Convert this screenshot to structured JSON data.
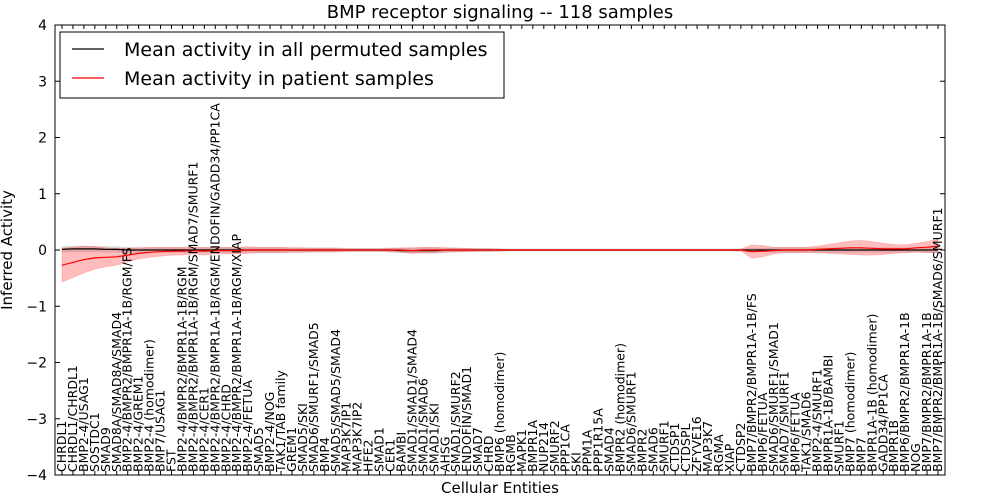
{
  "chart_data": {
    "type": "line",
    "title": "BMP receptor signaling -- 118 samples",
    "xlabel": "Cellular Entities",
    "ylabel": "Inferred Activity",
    "ylim": [
      -4,
      4
    ],
    "yticks": [
      -4,
      -3,
      -2,
      -1,
      0,
      1,
      2,
      3,
      4
    ],
    "ytick_labels": [
      "−4",
      "−3",
      "−2",
      "−1",
      "0",
      "1",
      "2",
      "3",
      "4"
    ],
    "grid": false,
    "legend_position": "top-left",
    "legend": [
      {
        "label": "Mean activity in all permuted samples",
        "color": "#000000"
      },
      {
        "label": "Mean activity in patient samples",
        "color": "#ff0000"
      }
    ],
    "entities": [
      {
        "label": "CHRDL1",
        "perm": 0.01,
        "perm_band": 0.05,
        "patient": -0.27,
        "patient_band": 0.3
      },
      {
        "label": "CHRDL1/CHRDL1",
        "perm": 0.02,
        "perm_band": 0.05,
        "patient": -0.22,
        "patient_band": 0.27
      },
      {
        "label": "BMP2-4/USAG1",
        "perm": 0.02,
        "perm_band": 0.05,
        "patient": -0.17,
        "patient_band": 0.24
      },
      {
        "label": "SOSTDC1",
        "perm": 0.02,
        "perm_band": 0.05,
        "patient": -0.14,
        "patient_band": 0.2
      },
      {
        "label": "SMAD9",
        "perm": 0.01,
        "perm_band": 0.05,
        "patient": -0.13,
        "patient_band": 0.17
      },
      {
        "label": "SMAD8A/SMAD8A/SMAD4",
        "perm": 0.01,
        "perm_band": 0.05,
        "patient": -0.12,
        "patient_band": 0.15
      },
      {
        "label": "BMP2-4/BMPR2/BMPR1A-1B/RGM/FS",
        "perm": 0.0,
        "perm_band": 0.05,
        "patient": -0.09,
        "patient_band": 0.12
      },
      {
        "label": "BMP2-4/GREM1",
        "perm": 0.0,
        "perm_band": 0.04,
        "patient": -0.06,
        "patient_band": 0.1
      },
      {
        "label": "BMP2-4 (homodimer)",
        "perm": 0.0,
        "perm_band": 0.04,
        "patient": -0.04,
        "patient_band": 0.09
      },
      {
        "label": "BMP7/USAG1",
        "perm": 0.0,
        "perm_band": 0.04,
        "patient": -0.03,
        "patient_band": 0.08
      },
      {
        "label": "FST",
        "perm": 0.0,
        "perm_band": 0.04,
        "patient": -0.02,
        "patient_band": 0.07
      },
      {
        "label": "BMP2-4/BMPR2/BMPR1A-1B/RGM",
        "perm": 0.0,
        "perm_band": 0.04,
        "patient": -0.02,
        "patient_band": 0.07
      },
      {
        "label": "BMP2-4/BMPR2/BMPR1A-1B/RGM/SMAD7/SMURF1",
        "perm": 0.0,
        "perm_band": 0.04,
        "patient": -0.01,
        "patient_band": 0.06
      },
      {
        "label": "BMP2-4/CER1",
        "perm": 0.0,
        "perm_band": 0.04,
        "patient": -0.02,
        "patient_band": 0.07
      },
      {
        "label": "BMP2-4/BMPR2/BMPR1A-1B/RGM/ENDOFIN/GADD34/PP1CA",
        "perm": 0.0,
        "perm_band": 0.04,
        "patient": -0.01,
        "patient_band": 0.06
      },
      {
        "label": "BMP2-4/CHRD",
        "perm": 0.0,
        "perm_band": 0.04,
        "patient": -0.01,
        "patient_band": 0.06
      },
      {
        "label": "BMP2-4/BMPR2/BMPR1A-1B/RGM/XIAP",
        "perm": 0.0,
        "perm_band": 0.04,
        "patient": -0.01,
        "patient_band": 0.06
      },
      {
        "label": "BMP2-4/FETUA",
        "perm": 0.0,
        "perm_band": 0.04,
        "patient": 0.0,
        "patient_band": 0.06
      },
      {
        "label": "SMAD5",
        "perm": 0.0,
        "perm_band": 0.04,
        "patient": 0.0,
        "patient_band": 0.05
      },
      {
        "label": "BMP2-4/NOG",
        "perm": 0.0,
        "perm_band": 0.04,
        "patient": 0.0,
        "patient_band": 0.05
      },
      {
        "label": "TAK1/TAB family",
        "perm": 0.0,
        "perm_band": 0.04,
        "patient": 0.0,
        "patient_band": 0.05
      },
      {
        "label": "GREM1",
        "perm": 0.0,
        "perm_band": 0.04,
        "patient": 0.0,
        "patient_band": 0.04
      },
      {
        "label": "SMAD5/SKI",
        "perm": 0.0,
        "perm_band": 0.04,
        "patient": 0.0,
        "patient_band": 0.04
      },
      {
        "label": "SMAD6/SMURF1/SMAD5",
        "perm": 0.0,
        "perm_band": 0.04,
        "patient": 0.0,
        "patient_band": 0.03
      },
      {
        "label": "BMP4",
        "perm": 0.0,
        "perm_band": 0.04,
        "patient": 0.0,
        "patient_band": 0.03
      },
      {
        "label": "SMAD5/SMAD5/SMAD4",
        "perm": 0.0,
        "perm_band": 0.04,
        "patient": 0.0,
        "patient_band": 0.03
      },
      {
        "label": "MAP3K7IP1",
        "perm": 0.0,
        "perm_band": 0.03,
        "patient": 0.0,
        "patient_band": 0.02
      },
      {
        "label": "MAP3K7IP2",
        "perm": 0.0,
        "perm_band": 0.03,
        "patient": 0.0,
        "patient_band": 0.02
      },
      {
        "label": "HFE2",
        "perm": 0.0,
        "perm_band": 0.03,
        "patient": 0.0,
        "patient_band": 0.02
      },
      {
        "label": "SMAD1",
        "perm": 0.0,
        "perm_band": 0.03,
        "patient": 0.0,
        "patient_band": 0.02
      },
      {
        "label": "CER1",
        "perm": 0.0,
        "perm_band": 0.04,
        "patient": 0.0,
        "patient_band": 0.03
      },
      {
        "label": "BAMBI",
        "perm": -0.01,
        "perm_band": 0.04,
        "patient": 0.0,
        "patient_band": 0.04
      },
      {
        "label": "SMAD1/SMAD1/SMAD4",
        "perm": -0.01,
        "perm_band": 0.05,
        "patient": -0.01,
        "patient_band": 0.05
      },
      {
        "label": "SMAD1/SMAD6",
        "perm": -0.01,
        "perm_band": 0.05,
        "patient": 0.0,
        "patient_band": 0.05
      },
      {
        "label": "SMAD1/SKI",
        "perm": -0.01,
        "perm_band": 0.05,
        "patient": 0.0,
        "patient_band": 0.05
      },
      {
        "label": "AHSG",
        "perm": 0.0,
        "perm_band": 0.04,
        "patient": 0.0,
        "patient_band": 0.04
      },
      {
        "label": "SMAD1/SMURF2",
        "perm": 0.0,
        "perm_band": 0.04,
        "patient": 0.0,
        "patient_band": 0.03
      },
      {
        "label": "ENDOFIN/SMAD1",
        "perm": 0.0,
        "perm_band": 0.03,
        "patient": 0.0,
        "patient_band": 0.03
      },
      {
        "label": "SMAD7",
        "perm": 0.0,
        "perm_band": 0.03,
        "patient": 0.0,
        "patient_band": 0.02
      },
      {
        "label": "CHRD",
        "perm": 0.0,
        "perm_band": 0.03,
        "patient": 0.0,
        "patient_band": 0.02
      },
      {
        "label": "BMP6 (homodimer)",
        "perm": 0.0,
        "perm_band": 0.02,
        "patient": 0.0,
        "patient_band": 0.02
      },
      {
        "label": "RGMB",
        "perm": 0.0,
        "perm_band": 0.02,
        "patient": 0.0,
        "patient_band": 0.01
      },
      {
        "label": "MAPK1",
        "perm": 0.0,
        "perm_band": 0.02,
        "patient": 0.0,
        "patient_band": 0.01
      },
      {
        "label": "BMPR1A",
        "perm": 0.0,
        "perm_band": 0.02,
        "patient": 0.0,
        "patient_band": 0.01
      },
      {
        "label": "NUP214",
        "perm": 0.0,
        "perm_band": 0.02,
        "patient": 0.0,
        "patient_band": 0.01
      },
      {
        "label": "SMURF2",
        "perm": 0.0,
        "perm_band": 0.02,
        "patient": 0.0,
        "patient_band": 0.01
      },
      {
        "label": "PPP1CA",
        "perm": 0.0,
        "perm_band": 0.02,
        "patient": 0.0,
        "patient_band": 0.01
      },
      {
        "label": "SKI",
        "perm": 0.0,
        "perm_band": 0.02,
        "patient": 0.0,
        "patient_band": 0.01
      },
      {
        "label": "PPM1A",
        "perm": 0.0,
        "perm_band": 0.02,
        "patient": 0.0,
        "patient_band": 0.01
      },
      {
        "label": "PPP1R15A",
        "perm": 0.0,
        "perm_band": 0.02,
        "patient": 0.0,
        "patient_band": 0.01
      },
      {
        "label": "SMAD4",
        "perm": 0.0,
        "perm_band": 0.02,
        "patient": 0.0,
        "patient_band": 0.01
      },
      {
        "label": "BMPR2 (homodimer)",
        "perm": 0.0,
        "perm_band": 0.02,
        "patient": 0.0,
        "patient_band": 0.01
      },
      {
        "label": "SMAD6/SMURF1",
        "perm": 0.0,
        "perm_band": 0.02,
        "patient": 0.0,
        "patient_band": 0.01
      },
      {
        "label": "BMPR2",
        "perm": 0.0,
        "perm_band": 0.02,
        "patient": 0.0,
        "patient_band": 0.01
      },
      {
        "label": "SMAD6",
        "perm": 0.0,
        "perm_band": 0.02,
        "patient": 0.0,
        "patient_band": 0.01
      },
      {
        "label": "SMURF1",
        "perm": 0.0,
        "perm_band": 0.02,
        "patient": 0.0,
        "patient_band": 0.01
      },
      {
        "label": "CTDSP1",
        "perm": 0.0,
        "perm_band": 0.02,
        "patient": 0.0,
        "patient_band": 0.01
      },
      {
        "label": "CTDSPL",
        "perm": 0.0,
        "perm_band": 0.02,
        "patient": 0.0,
        "patient_band": 0.01
      },
      {
        "label": "ZFYVE16",
        "perm": 0.0,
        "perm_band": 0.02,
        "patient": 0.0,
        "patient_band": 0.01
      },
      {
        "label": "MAP3K7",
        "perm": 0.0,
        "perm_band": 0.02,
        "patient": 0.0,
        "patient_band": 0.01
      },
      {
        "label": "RGMA",
        "perm": 0.0,
        "perm_band": 0.02,
        "patient": 0.0,
        "patient_band": 0.01
      },
      {
        "label": "XIAP",
        "perm": 0.0,
        "perm_band": 0.02,
        "patient": 0.0,
        "patient_band": 0.01
      },
      {
        "label": "CTDSP2",
        "perm": 0.0,
        "perm_band": 0.02,
        "patient": 0.0,
        "patient_band": 0.02
      },
      {
        "label": "BMP7/BMPR2/BMPR1A-1B/FS",
        "perm": 0.0,
        "perm_band": 0.03,
        "patient": -0.03,
        "patient_band": 0.12
      },
      {
        "label": "BMP6/FETUA",
        "perm": 0.0,
        "perm_band": 0.03,
        "patient": -0.02,
        "patient_band": 0.1
      },
      {
        "label": "SMAD6/SMURF1/SMAD1",
        "perm": 0.0,
        "perm_band": 0.04,
        "patient": -0.01,
        "patient_band": 0.06
      },
      {
        "label": "SMAD7/SMURF1",
        "perm": 0.0,
        "perm_band": 0.04,
        "patient": 0.0,
        "patient_band": 0.05
      },
      {
        "label": "BMP6/FETUA",
        "perm": 0.0,
        "perm_band": 0.04,
        "patient": 0.0,
        "patient_band": 0.05
      },
      {
        "label": "TAK1/SMAD6",
        "perm": 0.0,
        "perm_band": 0.04,
        "patient": 0.0,
        "patient_band": 0.05
      },
      {
        "label": "BMP2-4/SMURF1",
        "perm": 0.0,
        "perm_band": 0.04,
        "patient": 0.01,
        "patient_band": 0.06
      },
      {
        "label": "BMPR1A-1B/BAMBI",
        "perm": 0.0,
        "perm_band": 0.04,
        "patient": 0.02,
        "patient_band": 0.08
      },
      {
        "label": "SMURF1",
        "perm": 0.0,
        "perm_band": 0.04,
        "patient": 0.03,
        "patient_band": 0.1
      },
      {
        "label": "BMP7 (homodimer)",
        "perm": 0.0,
        "perm_band": 0.04,
        "patient": 0.04,
        "patient_band": 0.12
      },
      {
        "label": "BMP7",
        "perm": 0.0,
        "perm_band": 0.04,
        "patient": 0.04,
        "patient_band": 0.13
      },
      {
        "label": "BMPR1A-1B (homodimer)",
        "perm": 0.0,
        "perm_band": 0.04,
        "patient": 0.03,
        "patient_band": 0.12
      },
      {
        "label": "GADD34/PP1CA",
        "perm": 0.0,
        "perm_band": 0.04,
        "patient": 0.02,
        "patient_band": 0.1
      },
      {
        "label": "BMPR1B",
        "perm": 0.0,
        "perm_band": 0.04,
        "patient": 0.02,
        "patient_band": 0.08
      },
      {
        "label": "BMP6/BMPR2/BMPR1A-1B",
        "perm": 0.0,
        "perm_band": 0.04,
        "patient": 0.02,
        "patient_band": 0.07
      },
      {
        "label": "NOG",
        "perm": 0.0,
        "perm_band": 0.04,
        "patient": 0.04,
        "patient_band": 0.08
      },
      {
        "label": "BMP7/BMPR2/BMPR1A-1B",
        "perm": 0.0,
        "perm_band": 0.04,
        "patient": 0.05,
        "patient_band": 0.1
      },
      {
        "label": "BMP7/BMPR2/BMPR1A-1B/SMAD6/SMURF1",
        "perm": 0.0,
        "perm_band": 0.04,
        "patient": 0.07,
        "patient_band": 0.12
      }
    ]
  }
}
